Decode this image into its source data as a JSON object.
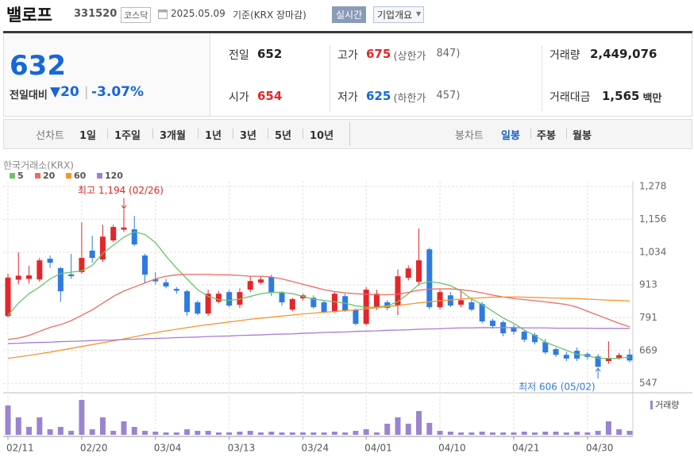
{
  "header": {
    "name": "밸로프",
    "code": "331520",
    "market": "코스닥",
    "date": "2025.05.09",
    "basis": "기준(KRX 장마감)",
    "realtime_button": "실시간",
    "company_button": "기업개요"
  },
  "quote": {
    "price": "632",
    "change_label": "전일대비",
    "change": "20",
    "change_rate": "-3.07%",
    "items": [
      {
        "label": "전일",
        "value": "652"
      },
      {
        "label": "고가",
        "value": "675",
        "note_label": "(상한가",
        "note_value": "847)"
      },
      {
        "label": "거래량",
        "value": "2,449,076"
      },
      {
        "label": "시가",
        "value": "654"
      },
      {
        "label": "저가",
        "value": "625",
        "note_label": "(하한가",
        "note_value": "457)"
      },
      {
        "label": "거래대금",
        "value": "1,565",
        "unit": "백만"
      }
    ]
  },
  "period_bar": {
    "line_label": "선차트",
    "line_periods": [
      "1일",
      "1주일",
      "3개월",
      "1년",
      "3년",
      "5년",
      "10년"
    ],
    "candle_label": "봉차트",
    "candle_periods": [
      "일봉",
      "주봉",
      "월봉"
    ],
    "selected": "일봉"
  },
  "chart_data": {
    "type": "candlestick",
    "source": "한국거래소(KRX)",
    "categories": [
      "02/11",
      null,
      null,
      null,
      null,
      null,
      null,
      "02/20",
      null,
      null,
      null,
      null,
      null,
      null,
      "03/04",
      null,
      null,
      null,
      null,
      null,
      null,
      "03/13",
      null,
      null,
      null,
      null,
      null,
      null,
      "03/24",
      null,
      null,
      null,
      null,
      null,
      "04/01",
      null,
      null,
      null,
      null,
      null,
      null,
      "04/10",
      null,
      null,
      null,
      null,
      null,
      null,
      "04/21",
      null,
      null,
      null,
      null,
      null,
      null,
      "04/30",
      null,
      null,
      null,
      null
    ],
    "open": [
      797,
      932,
      935,
      933,
      1010,
      975,
      952,
      960,
      1040,
      1007,
      1078,
      1118,
      1119,
      1022,
      934,
      922,
      898,
      889,
      848,
      806,
      850,
      886,
      839,
      895,
      921,
      942,
      883,
      821,
      863,
      865,
      848,
      815,
      871,
      821,
      768,
      827,
      848,
      836,
      939,
      924,
      1045,
      830,
      874,
      839,
      848,
      842,
      780,
      774,
      756,
      739,
      727,
      700,
      674,
      653,
      668,
      656,
      647,
      630,
      642,
      654
    ],
    "high": [
      954,
      1034,
      984,
      1013,
      1022,
      980,
      1028,
      1145,
      1095,
      1136,
      1136,
      1194,
      1169,
      1028,
      960,
      935,
      905,
      895,
      855,
      895,
      890,
      895,
      900,
      945,
      945,
      951,
      890,
      865,
      880,
      874,
      856,
      886,
      880,
      825,
      905,
      895,
      856,
      970,
      985,
      1122,
      1051,
      895,
      886,
      890,
      865,
      850,
      787,
      780,
      765,
      745,
      735,
      712,
      680,
      665,
      680,
      662,
      656,
      703,
      660,
      675
    ],
    "low": [
      792,
      915,
      918,
      925,
      975,
      850,
      935,
      955,
      995,
      998,
      1072,
      1110,
      1057,
      918,
      915,
      900,
      880,
      798,
      800,
      798,
      845,
      830,
      827,
      886,
      915,
      871,
      835,
      815,
      855,
      825,
      808,
      810,
      812,
      762,
      762,
      820,
      818,
      800,
      930,
      910,
      822,
      822,
      830,
      830,
      815,
      770,
      750,
      722,
      728,
      700,
      692,
      655,
      645,
      630,
      630,
      635,
      606,
      620,
      635,
      625
    ],
    "close": [
      940,
      947,
      948,
      1004,
      995,
      889,
      945,
      1013,
      1013,
      1092,
      1128,
      1126,
      1063,
      951,
      926,
      907,
      891,
      812,
      806,
      880,
      880,
      836,
      886,
      927,
      933,
      883,
      848,
      860,
      874,
      830,
      812,
      880,
      818,
      768,
      895,
      880,
      827,
      945,
      974,
      1004,
      830,
      886,
      836,
      856,
      821,
      777,
      760,
      733,
      739,
      709,
      700,
      662,
      653,
      639,
      639,
      645,
      609,
      639,
      652,
      632
    ],
    "up_color": "#e3262a",
    "down_color": "#2e7be0",
    "moving_averages": [
      {
        "name": "5",
        "color": "#6cc36a",
        "values": [
          800,
          845,
          880,
          905,
          935,
          955,
          960,
          965,
          985,
          1030,
          1060,
          1090,
          1110,
          1100,
          1070,
          1020,
          975,
          935,
          895,
          870,
          858,
          855,
          860,
          870,
          880,
          885,
          885,
          880,
          870,
          860,
          855,
          850,
          845,
          835,
          830,
          830,
          835,
          850,
          880,
          915,
          925,
          920,
          910,
          890,
          860,
          840,
          815,
          790,
          770,
          745,
          725,
          700,
          685,
          670,
          655,
          650,
          640,
          640,
          640,
          645
        ]
      },
      {
        "name": "20",
        "color": "#ef6a62",
        "values": [
          710,
          715,
          725,
          740,
          755,
          765,
          780,
          800,
          820,
          845,
          870,
          890,
          905,
          920,
          935,
          945,
          950,
          952,
          952,
          952,
          950,
          950,
          948,
          945,
          945,
          942,
          935,
          925,
          915,
          905,
          895,
          888,
          883,
          880,
          878,
          876,
          876,
          878,
          885,
          893,
          897,
          898,
          898,
          895,
          890,
          883,
          875,
          868,
          862,
          858,
          854,
          850,
          845,
          840,
          830,
          815,
          800,
          785,
          770,
          757
        ]
      },
      {
        "name": "60",
        "color": "#f6962e",
        "values": [
          640,
          645,
          651,
          657,
          663,
          670,
          677,
          684,
          691,
          698,
          705,
          712,
          720,
          728,
          735,
          742,
          748,
          754,
          760,
          765,
          770,
          775,
          780,
          785,
          789,
          793,
          797,
          801,
          805,
          808,
          811,
          814,
          817,
          820,
          824,
          828,
          832,
          836,
          841,
          846,
          850,
          854,
          857,
          860,
          863,
          865,
          867,
          868,
          868,
          867,
          866,
          865,
          864,
          863,
          862,
          860,
          858,
          856,
          855,
          853
        ]
      },
      {
        "name": "120",
        "color": "#a87bd6",
        "values": [
          695,
          696,
          698,
          699,
          700,
          702,
          703,
          704,
          706,
          707,
          708,
          710,
          711,
          713,
          714,
          715,
          717,
          718,
          719,
          721,
          722,
          723,
          725,
          726,
          727,
          729,
          730,
          731,
          733,
          734,
          736,
          737,
          738,
          740,
          741,
          742,
          744,
          745,
          746,
          748,
          749,
          750,
          752,
          753,
          753,
          754,
          754,
          754,
          754,
          753,
          753,
          753,
          752,
          752,
          752,
          752,
          751,
          751,
          751,
          751
        ]
      }
    ],
    "ylim": [
      518,
      1299
    ],
    "yticks": [
      {
        "value": 1278,
        "label": "1,278"
      },
      {
        "value": 1156,
        "label": "1,156"
      },
      {
        "value": 1034,
        "label": "1,034"
      },
      913,
      791,
      669,
      547
    ],
    "grid": true,
    "high_annotation": "최고 1,194 (02/26)",
    "low_annotation": "최저 606 (05/02)",
    "volume": {
      "name": "거래량",
      "color": "#9b84cf",
      "ylim": [
        0,
        25000000
      ],
      "values": [
        18130000,
        10780000,
        4900000,
        10780000,
        3430000,
        4900000,
        2450000,
        21560000,
        3430000,
        10780000,
        2450000,
        8330000,
        4900000,
        2450000,
        1960000,
        1470000,
        1470000,
        3430000,
        2450000,
        2450000,
        1470000,
        1470000,
        1960000,
        2450000,
        1470000,
        1960000,
        1470000,
        1470000,
        1470000,
        1470000,
        1470000,
        1960000,
        1470000,
        2450000,
        3430000,
        1470000,
        6860000,
        10780000,
        6860000,
        14700000,
        7350000,
        2450000,
        1960000,
        1470000,
        1470000,
        1960000,
        1470000,
        1470000,
        1470000,
        1960000,
        1470000,
        1960000,
        1960000,
        1470000,
        1960000,
        1470000,
        2450000,
        8330000,
        3430000,
        2449076
      ]
    }
  }
}
